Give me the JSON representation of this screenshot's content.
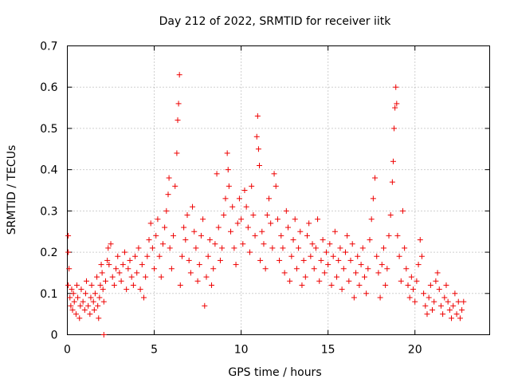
{
  "chart_data": {
    "type": "scatter",
    "title": "Day 212 of 2022, SRMTID for receiver iitk",
    "xlabel": "GPS time / hours",
    "ylabel": "SRMTID / TECUs",
    "xlim": [
      0,
      24.3
    ],
    "ylim": [
      0,
      0.7
    ],
    "x_ticks": [
      0,
      5,
      10,
      15,
      20
    ],
    "x_tick_labels": [
      "0",
      "5",
      "10",
      "15",
      "20"
    ],
    "y_ticks": [
      0,
      0.1,
      0.2,
      0.3,
      0.4,
      0.5,
      0.6,
      0.7
    ],
    "y_tick_labels": [
      "0",
      "0.1",
      "0.2",
      "0.3",
      "0.4",
      "0.5",
      "0.6",
      "0.7"
    ],
    "grid": true,
    "marker": "plus",
    "color": "#ee0000",
    "series": [
      {
        "name": "SRMTID",
        "points": [
          [
            0.05,
            0.24
          ],
          [
            0.05,
            0.2
          ],
          [
            0.05,
            0.12
          ],
          [
            0.1,
            0.16
          ],
          [
            0.15,
            0.09
          ],
          [
            0.2,
            0.07
          ],
          [
            0.25,
            0.11
          ],
          [
            0.3,
            0.06
          ],
          [
            0.35,
            0.1
          ],
          [
            0.4,
            0.08
          ],
          [
            0.5,
            0.05
          ],
          [
            0.55,
            0.12
          ],
          [
            0.6,
            0.09
          ],
          [
            0.7,
            0.04
          ],
          [
            0.75,
            0.07
          ],
          [
            0.8,
            0.11
          ],
          [
            0.9,
            0.08
          ],
          [
            1.0,
            0.06
          ],
          [
            1.05,
            0.1
          ],
          [
            1.1,
            0.13
          ],
          [
            1.2,
            0.07
          ],
          [
            1.3,
            0.05
          ],
          [
            1.35,
            0.09
          ],
          [
            1.4,
            0.12
          ],
          [
            1.5,
            0.08
          ],
          [
            1.55,
            0.06
          ],
          [
            1.6,
            0.1
          ],
          [
            1.7,
            0.14
          ],
          [
            1.75,
            0.07
          ],
          [
            1.8,
            0.04
          ],
          [
            1.85,
            0.09
          ],
          [
            1.9,
            0.12
          ],
          [
            1.95,
            0.17
          ],
          [
            2.0,
            0.15
          ],
          [
            2.05,
            0.11
          ],
          [
            2.1,
            0.08
          ],
          [
            2.1,
            0.0
          ],
          [
            2.2,
            0.13
          ],
          [
            2.3,
            0.18
          ],
          [
            2.35,
            0.21
          ],
          [
            2.4,
            0.17
          ],
          [
            2.5,
            0.22
          ],
          [
            2.6,
            0.14
          ],
          [
            2.7,
            0.12
          ],
          [
            2.8,
            0.16
          ],
          [
            2.9,
            0.19
          ],
          [
            3.0,
            0.15
          ],
          [
            3.1,
            0.13
          ],
          [
            3.2,
            0.17
          ],
          [
            3.3,
            0.2
          ],
          [
            3.4,
            0.11
          ],
          [
            3.5,
            0.16
          ],
          [
            3.6,
            0.18
          ],
          [
            3.7,
            0.14
          ],
          [
            3.8,
            0.12
          ],
          [
            3.9,
            0.19
          ],
          [
            4.0,
            0.15
          ],
          [
            4.1,
            0.21
          ],
          [
            4.2,
            0.11
          ],
          [
            4.3,
            0.17
          ],
          [
            4.4,
            0.09
          ],
          [
            4.5,
            0.14
          ],
          [
            4.6,
            0.19
          ],
          [
            4.7,
            0.23
          ],
          [
            4.8,
            0.27
          ],
          [
            4.9,
            0.21
          ],
          [
            5.0,
            0.16
          ],
          [
            5.1,
            0.24
          ],
          [
            5.2,
            0.28
          ],
          [
            5.3,
            0.19
          ],
          [
            5.4,
            0.14
          ],
          [
            5.5,
            0.22
          ],
          [
            5.6,
            0.26
          ],
          [
            5.7,
            0.3
          ],
          [
            5.8,
            0.34
          ],
          [
            5.85,
            0.38
          ],
          [
            5.9,
            0.21
          ],
          [
            6.0,
            0.16
          ],
          [
            6.1,
            0.24
          ],
          [
            6.2,
            0.36
          ],
          [
            6.3,
            0.44
          ],
          [
            6.35,
            0.52
          ],
          [
            6.4,
            0.56
          ],
          [
            6.45,
            0.63
          ],
          [
            6.5,
            0.12
          ],
          [
            6.6,
            0.19
          ],
          [
            6.7,
            0.26
          ],
          [
            6.8,
            0.23
          ],
          [
            6.9,
            0.29
          ],
          [
            7.0,
            0.18
          ],
          [
            7.1,
            0.15
          ],
          [
            7.2,
            0.31
          ],
          [
            7.3,
            0.25
          ],
          [
            7.4,
            0.21
          ],
          [
            7.5,
            0.13
          ],
          [
            7.6,
            0.17
          ],
          [
            7.7,
            0.24
          ],
          [
            7.8,
            0.28
          ],
          [
            7.9,
            0.07
          ],
          [
            8.0,
            0.14
          ],
          [
            8.1,
            0.19
          ],
          [
            8.2,
            0.23
          ],
          [
            8.3,
            0.12
          ],
          [
            8.4,
            0.16
          ],
          [
            8.5,
            0.22
          ],
          [
            8.6,
            0.39
          ],
          [
            8.7,
            0.26
          ],
          [
            8.8,
            0.18
          ],
          [
            8.9,
            0.21
          ],
          [
            9.0,
            0.29
          ],
          [
            9.1,
            0.33
          ],
          [
            9.2,
            0.44
          ],
          [
            9.25,
            0.4
          ],
          [
            9.3,
            0.36
          ],
          [
            9.4,
            0.25
          ],
          [
            9.5,
            0.31
          ],
          [
            9.6,
            0.21
          ],
          [
            9.7,
            0.17
          ],
          [
            9.8,
            0.27
          ],
          [
            9.9,
            0.33
          ],
          [
            10.0,
            0.28
          ],
          [
            10.1,
            0.22
          ],
          [
            10.2,
            0.35
          ],
          [
            10.3,
            0.31
          ],
          [
            10.4,
            0.26
          ],
          [
            10.5,
            0.2
          ],
          [
            10.6,
            0.36
          ],
          [
            10.7,
            0.29
          ],
          [
            10.8,
            0.24
          ],
          [
            10.9,
            0.48
          ],
          [
            10.95,
            0.53
          ],
          [
            11.0,
            0.45
          ],
          [
            11.05,
            0.41
          ],
          [
            11.1,
            0.18
          ],
          [
            11.2,
            0.25
          ],
          [
            11.3,
            0.22
          ],
          [
            11.4,
            0.16
          ],
          [
            11.5,
            0.29
          ],
          [
            11.6,
            0.33
          ],
          [
            11.7,
            0.27
          ],
          [
            11.8,
            0.21
          ],
          [
            11.9,
            0.39
          ],
          [
            12.0,
            0.36
          ],
          [
            12.1,
            0.28
          ],
          [
            12.2,
            0.18
          ],
          [
            12.3,
            0.24
          ],
          [
            12.4,
            0.21
          ],
          [
            12.5,
            0.15
          ],
          [
            12.6,
            0.3
          ],
          [
            12.7,
            0.26
          ],
          [
            12.8,
            0.13
          ],
          [
            12.9,
            0.19
          ],
          [
            13.0,
            0.23
          ],
          [
            13.1,
            0.28
          ],
          [
            13.2,
            0.16
          ],
          [
            13.3,
            0.21
          ],
          [
            13.4,
            0.25
          ],
          [
            13.5,
            0.12
          ],
          [
            13.6,
            0.18
          ],
          [
            13.7,
            0.14
          ],
          [
            13.8,
            0.24
          ],
          [
            13.9,
            0.27
          ],
          [
            14.0,
            0.19
          ],
          [
            14.1,
            0.22
          ],
          [
            14.2,
            0.16
          ],
          [
            14.3,
            0.21
          ],
          [
            14.4,
            0.28
          ],
          [
            14.5,
            0.13
          ],
          [
            14.6,
            0.18
          ],
          [
            14.7,
            0.23
          ],
          [
            14.8,
            0.15
          ],
          [
            14.9,
            0.2
          ],
          [
            15.0,
            0.17
          ],
          [
            15.1,
            0.22
          ],
          [
            15.2,
            0.12
          ],
          [
            15.3,
            0.19
          ],
          [
            15.4,
            0.25
          ],
          [
            15.5,
            0.14
          ],
          [
            15.6,
            0.18
          ],
          [
            15.7,
            0.21
          ],
          [
            15.8,
            0.11
          ],
          [
            15.9,
            0.16
          ],
          [
            16.0,
            0.2
          ],
          [
            16.1,
            0.24
          ],
          [
            16.2,
            0.13
          ],
          [
            16.3,
            0.18
          ],
          [
            16.4,
            0.22
          ],
          [
            16.5,
            0.09
          ],
          [
            16.6,
            0.15
          ],
          [
            16.7,
            0.19
          ],
          [
            16.8,
            0.12
          ],
          [
            16.9,
            0.17
          ],
          [
            17.0,
            0.21
          ],
          [
            17.1,
            0.14
          ],
          [
            17.2,
            0.1
          ],
          [
            17.3,
            0.16
          ],
          [
            17.4,
            0.23
          ],
          [
            17.5,
            0.28
          ],
          [
            17.6,
            0.33
          ],
          [
            17.7,
            0.38
          ],
          [
            17.8,
            0.19
          ],
          [
            17.9,
            0.15
          ],
          [
            18.0,
            0.09
          ],
          [
            18.1,
            0.17
          ],
          [
            18.2,
            0.21
          ],
          [
            18.3,
            0.12
          ],
          [
            18.4,
            0.16
          ],
          [
            18.5,
            0.24
          ],
          [
            18.6,
            0.29
          ],
          [
            18.7,
            0.37
          ],
          [
            18.75,
            0.42
          ],
          [
            18.8,
            0.5
          ],
          [
            18.85,
            0.55
          ],
          [
            18.9,
            0.6
          ],
          [
            18.95,
            0.56
          ],
          [
            19.0,
            0.24
          ],
          [
            19.1,
            0.19
          ],
          [
            19.2,
            0.13
          ],
          [
            19.3,
            0.3
          ],
          [
            19.4,
            0.21
          ],
          [
            19.5,
            0.16
          ],
          [
            19.6,
            0.12
          ],
          [
            19.7,
            0.09
          ],
          [
            19.8,
            0.14
          ],
          [
            19.9,
            0.11
          ],
          [
            20.0,
            0.08
          ],
          [
            20.1,
            0.13
          ],
          [
            20.2,
            0.17
          ],
          [
            20.3,
            0.23
          ],
          [
            20.4,
            0.19
          ],
          [
            20.5,
            0.1
          ],
          [
            20.6,
            0.07
          ],
          [
            20.7,
            0.05
          ],
          [
            20.8,
            0.09
          ],
          [
            20.9,
            0.12
          ],
          [
            21.0,
            0.06
          ],
          [
            21.1,
            0.08
          ],
          [
            21.2,
            0.13
          ],
          [
            21.3,
            0.15
          ],
          [
            21.4,
            0.11
          ],
          [
            21.5,
            0.07
          ],
          [
            21.6,
            0.05
          ],
          [
            21.7,
            0.09
          ],
          [
            21.8,
            0.12
          ],
          [
            21.9,
            0.08
          ],
          [
            22.0,
            0.06
          ],
          [
            22.1,
            0.04
          ],
          [
            22.2,
            0.07
          ],
          [
            22.3,
            0.1
          ],
          [
            22.4,
            0.05
          ],
          [
            22.5,
            0.08
          ],
          [
            22.6,
            0.04
          ],
          [
            22.7,
            0.06
          ],
          [
            22.8,
            0.08
          ]
        ]
      }
    ]
  }
}
